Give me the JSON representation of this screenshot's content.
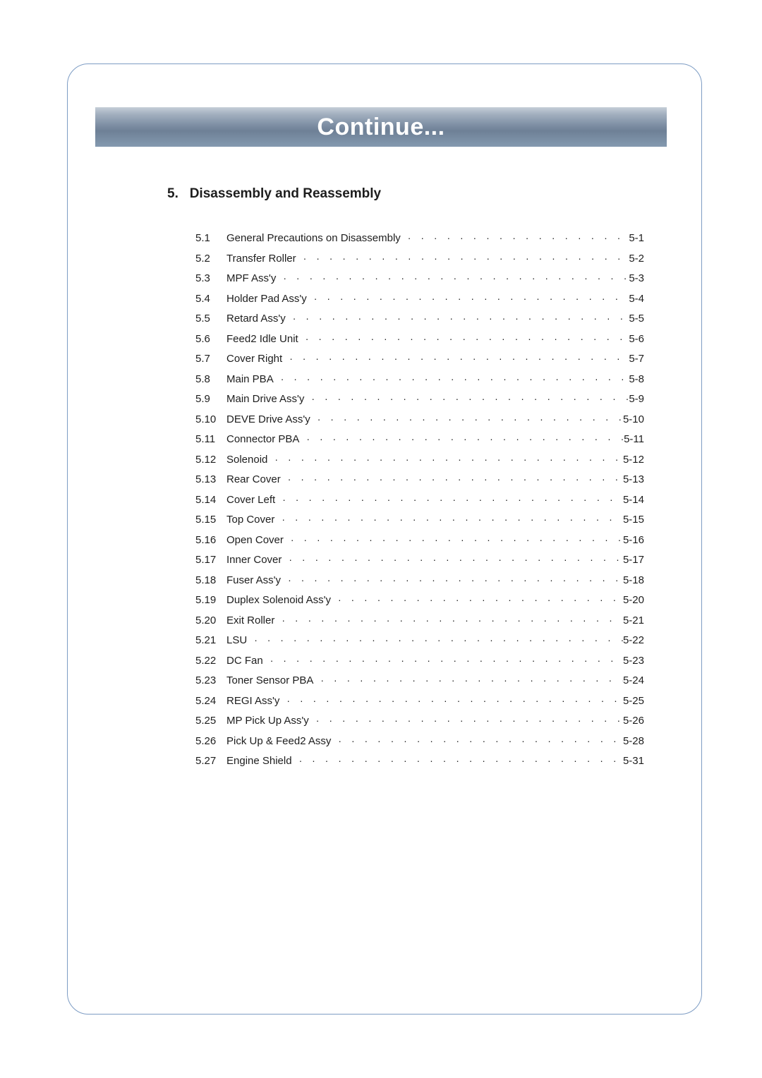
{
  "title": "Continue...",
  "heading_number": "5.",
  "heading_text": "Disassembly and Reassembly",
  "dot_fill": "· · · · · · · · · · · · · · · · · · · · · · · · · · · · · · · · · · · · · · · · · · · · · · · · · · · · · · · · · · · · · · · ·",
  "toc": [
    {
      "num": "5.1",
      "title": "General Precautions on Disassembly",
      "page": "5-1"
    },
    {
      "num": "5.2",
      "title": "Transfer Roller",
      "page": "5-2"
    },
    {
      "num": "5.3",
      "title": "MPF Ass'y",
      "page": "5-3"
    },
    {
      "num": "5.4",
      "title": "Holder Pad Ass'y",
      "page": "5-4"
    },
    {
      "num": "5.5",
      "title": "Retard Ass'y",
      "page": "5-5"
    },
    {
      "num": "5.6",
      "title": "Feed2 Idle Unit",
      "page": "5-6"
    },
    {
      "num": "5.7",
      "title": "Cover Right",
      "page": "5-7"
    },
    {
      "num": "5.8",
      "title": "Main PBA",
      "page": "5-8"
    },
    {
      "num": "5.9",
      "title": "Main Drive Ass'y",
      "page": "5-9"
    },
    {
      "num": "5.10",
      "title": "DEVE Drive Ass'y",
      "page": "5-10"
    },
    {
      "num": "5.11",
      "title": "Connector PBA",
      "page": "5-11"
    },
    {
      "num": "5.12",
      "title": "Solenoid",
      "page": "5-12"
    },
    {
      "num": "5.13",
      "title": "Rear Cover",
      "page": "5-13"
    },
    {
      "num": "5.14",
      "title": "Cover Left",
      "page": "5-14"
    },
    {
      "num": "5.15",
      "title": "Top Cover",
      "page": "5-15"
    },
    {
      "num": "5.16",
      "title": "Open Cover",
      "page": "5-16"
    },
    {
      "num": "5.17",
      "title": "Inner Cover",
      "page": "5-17"
    },
    {
      "num": "5.18",
      "title": "Fuser Ass'y",
      "page": "5-18"
    },
    {
      "num": "5.19",
      "title": "Duplex Solenoid Ass'y",
      "page": "5-20"
    },
    {
      "num": "5.20",
      "title": "Exit Roller",
      "page": "5-21"
    },
    {
      "num": "5.21",
      "title": "LSU",
      "page": "5-22"
    },
    {
      "num": "5.22",
      "title": "DC Fan",
      "page": "5-23"
    },
    {
      "num": "5.23",
      "title": "Toner Sensor PBA",
      "page": "5-24"
    },
    {
      "num": "5.24",
      "title": "REGI Ass'y",
      "page": "5-25"
    },
    {
      "num": "5.25",
      "title": "MP Pick Up Ass'y",
      "page": "5-26"
    },
    {
      "num": "5.26",
      "title": "Pick Up & Feed2 Assy",
      "page": "5-28"
    },
    {
      "num": "5.27",
      "title": "Engine Shield",
      "page": "5-31"
    }
  ]
}
